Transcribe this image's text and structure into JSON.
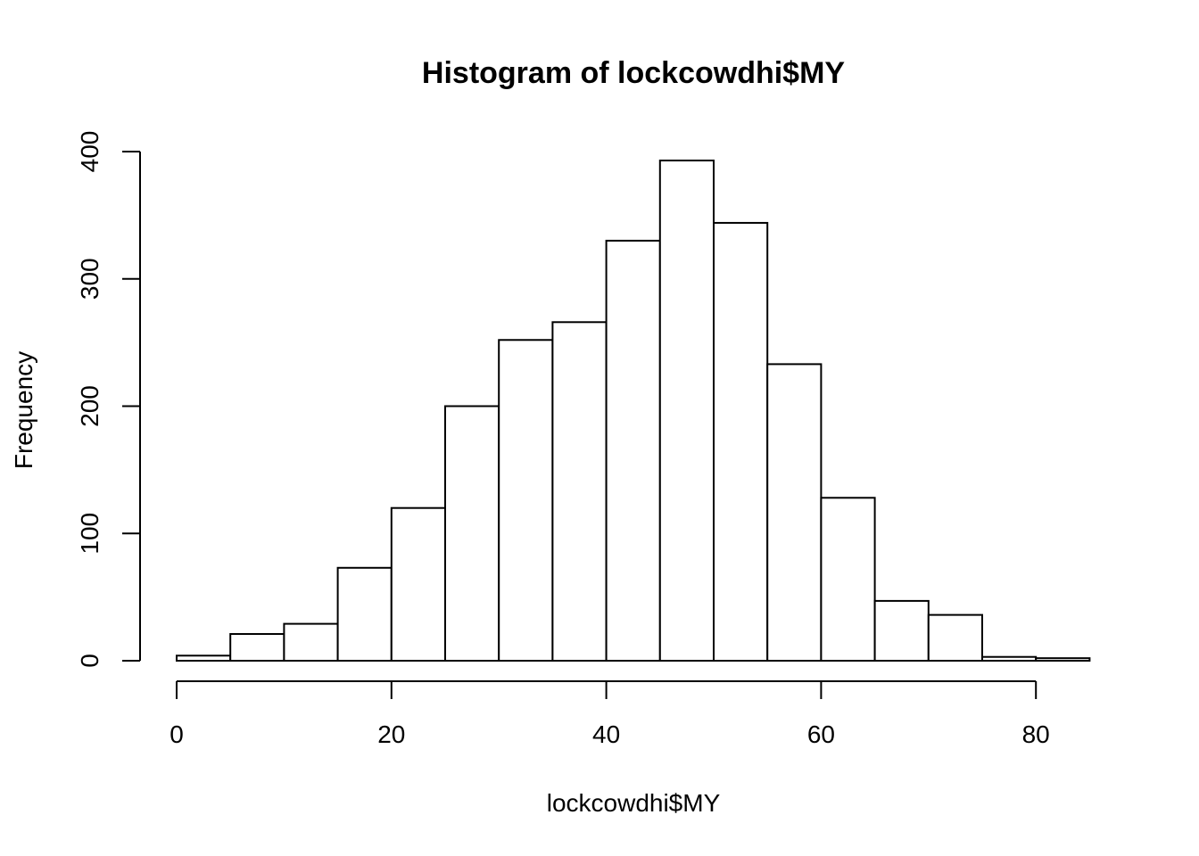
{
  "chart_data": {
    "type": "bar",
    "title": "Histogram of lockcowdhi$MY",
    "xlabel": "lockcowdhi$MY",
    "ylabel": "Frequency",
    "bins": [
      {
        "x0": 0,
        "x1": 5,
        "count": 4
      },
      {
        "x0": 5,
        "x1": 10,
        "count": 21
      },
      {
        "x0": 10,
        "x1": 15,
        "count": 29
      },
      {
        "x0": 15,
        "x1": 20,
        "count": 73
      },
      {
        "x0": 20,
        "x1": 25,
        "count": 120
      },
      {
        "x0": 25,
        "x1": 30,
        "count": 200
      },
      {
        "x0": 30,
        "x1": 35,
        "count": 252
      },
      {
        "x0": 35,
        "x1": 40,
        "count": 266
      },
      {
        "x0": 40,
        "x1": 45,
        "count": 330
      },
      {
        "x0": 45,
        "x1": 50,
        "count": 393
      },
      {
        "x0": 50,
        "x1": 55,
        "count": 344
      },
      {
        "x0": 55,
        "x1": 60,
        "count": 233
      },
      {
        "x0": 60,
        "x1": 65,
        "count": 128
      },
      {
        "x0": 65,
        "x1": 70,
        "count": 47
      },
      {
        "x0": 70,
        "x1": 75,
        "count": 36
      },
      {
        "x0": 75,
        "x1": 80,
        "count": 3
      },
      {
        "x0": 80,
        "x1": 85,
        "count": 2
      }
    ],
    "xticks": [
      0,
      20,
      40,
      60,
      80
    ],
    "yticks": [
      0,
      100,
      200,
      300,
      400
    ],
    "xlim": [
      0,
      85
    ],
    "ylim": [
      0,
      400
    ],
    "grid": false,
    "legend": "none",
    "colors": {
      "bar_fill": "#ffffff",
      "bar_stroke": "#000000"
    }
  }
}
